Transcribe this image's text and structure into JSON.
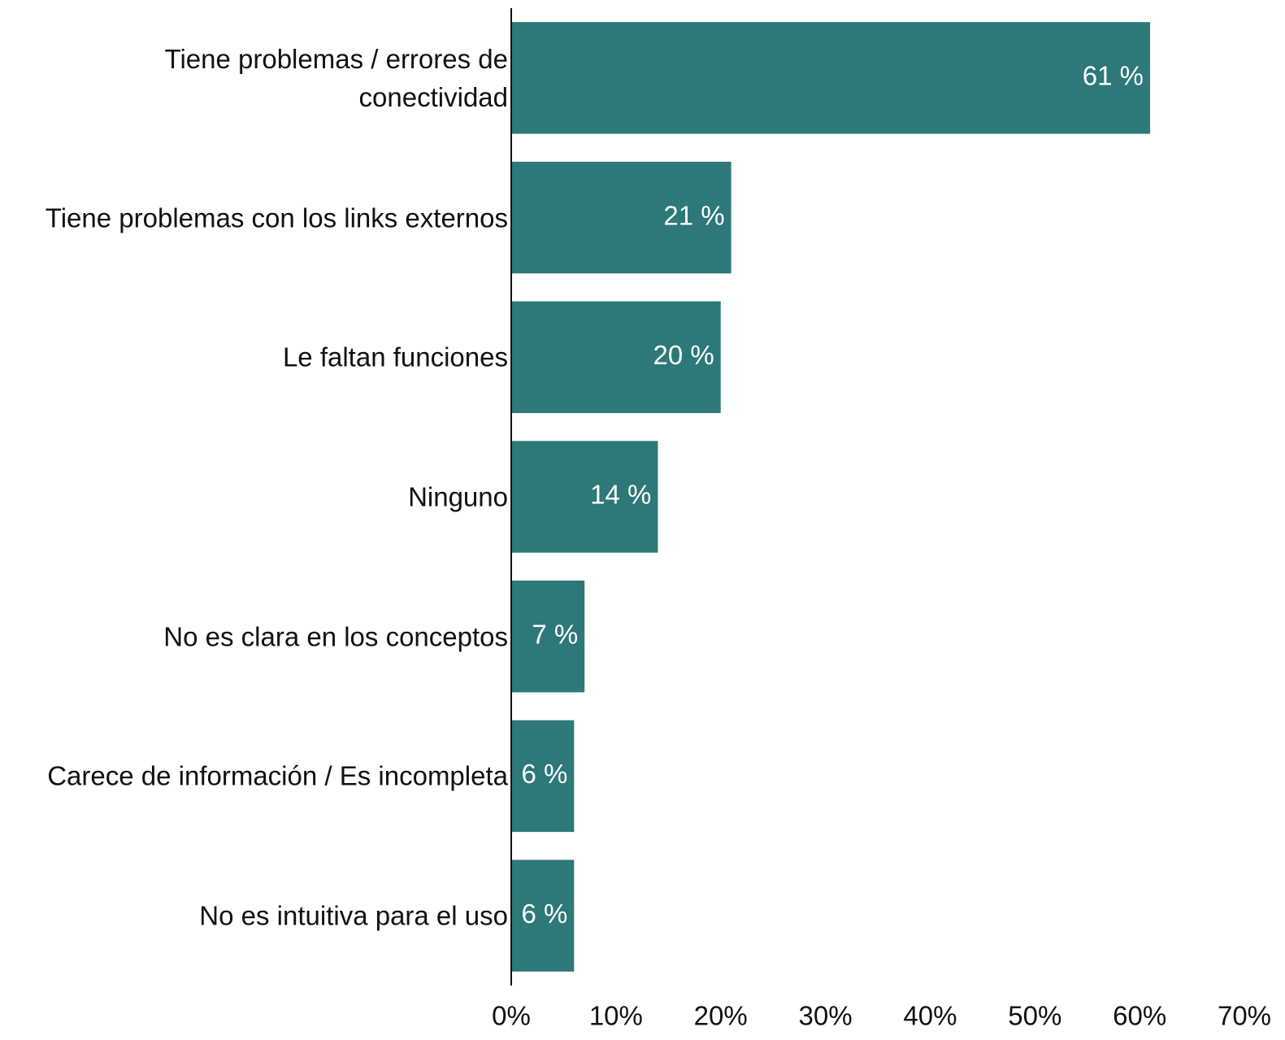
{
  "chart_data": {
    "type": "bar",
    "orientation": "horizontal",
    "categories": [
      "Tiene problemas / errores de\nconectividad",
      "Tiene problemas con los links externos",
      "Le faltan funciones",
      "Ninguno",
      "No es clara en los conceptos",
      "Carece de información / Es incompleta",
      "No es intuitiva para el uso"
    ],
    "values": [
      61,
      21,
      20,
      14,
      7,
      6,
      6
    ],
    "value_labels": [
      "61 %",
      "21 %",
      "20 %",
      "14 %",
      "7 %",
      "6 %",
      "6 %"
    ],
    "color": "#2d7878",
    "xlim": [
      0,
      70
    ],
    "xticks": [
      {
        "value": 0,
        "label": "0%"
      },
      {
        "value": 10,
        "label": "10%"
      },
      {
        "value": 20,
        "label": "20%"
      },
      {
        "value": 30,
        "label": "30%"
      },
      {
        "value": 40,
        "label": "40%"
      },
      {
        "value": 50,
        "label": "50%"
      },
      {
        "value": 60,
        "label": "60%"
      },
      {
        "value": 70,
        "label": "70%"
      }
    ],
    "grid": false
  }
}
